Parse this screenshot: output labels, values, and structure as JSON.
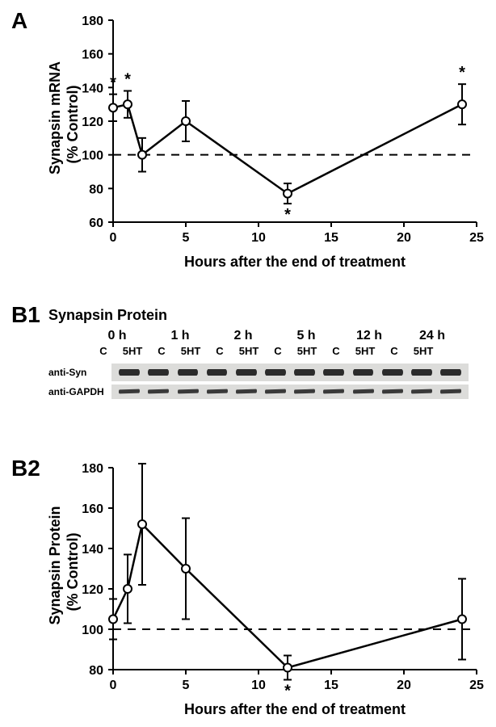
{
  "panelA": {
    "label": "A",
    "type": "line",
    "ylabel_line1": "Synapsin mRNA",
    "ylabel_line2": "(% Control)",
    "xlabel": "Hours after the end of treatment",
    "xlim": [
      0,
      25
    ],
    "ylim": [
      60,
      180
    ],
    "xtick_step": 5,
    "ytick_step": 20,
    "xticks": [
      0,
      5,
      10,
      15,
      20,
      25
    ],
    "yticks": [
      60,
      80,
      100,
      120,
      140,
      160,
      180
    ],
    "baseline_y": 100,
    "baseline_dash": "10,8",
    "line_color": "#000000",
    "line_width": 2.5,
    "marker_size": 5,
    "marker_fill": "#ffffff",
    "marker_stroke": "#000000",
    "data": [
      {
        "x": 0,
        "y": 128,
        "err": 8,
        "sig": true,
        "sig_pos": "above"
      },
      {
        "x": 1,
        "y": 130,
        "err": 8,
        "sig": true,
        "sig_pos": "above"
      },
      {
        "x": 2,
        "y": 100,
        "err": 10,
        "sig": false
      },
      {
        "x": 5,
        "y": 120,
        "err": 12,
        "sig": false
      },
      {
        "x": 12,
        "y": 77,
        "err": 6,
        "sig": true,
        "sig_pos": "below"
      },
      {
        "x": 24,
        "y": 130,
        "err": 12,
        "sig": true,
        "sig_pos": "above"
      }
    ]
  },
  "panelB1": {
    "label": "B1",
    "title": "Synapsin Protein",
    "time_labels": [
      "0 h",
      "1 h",
      "2 h",
      "5 h",
      "12 h",
      "24 h"
    ],
    "condition_labels": [
      "C",
      "5HT"
    ],
    "antibodies": [
      "anti-Syn",
      "anti-GAPDH"
    ],
    "blot_bg": "#dcdcda",
    "band_color": "#2b2b2b"
  },
  "panelB2": {
    "label": "B2",
    "type": "line",
    "ylabel_line1": "Synapsin Protein",
    "ylabel_line2": "(% Control)",
    "xlabel": "Hours after the end of treatment",
    "xlim": [
      0,
      25
    ],
    "ylim": [
      80,
      180
    ],
    "xtick_step": 5,
    "ytick_step": 20,
    "xticks": [
      0,
      5,
      10,
      15,
      20,
      25
    ],
    "yticks": [
      80,
      100,
      120,
      140,
      160,
      180
    ],
    "baseline_y": 100,
    "baseline_dash": "10,8",
    "line_color": "#000000",
    "line_width": 2.5,
    "marker_size": 5,
    "marker_fill": "#ffffff",
    "marker_stroke": "#000000",
    "data": [
      {
        "x": 0,
        "y": 105,
        "err": 10,
        "sig": false
      },
      {
        "x": 1,
        "y": 120,
        "err": 17,
        "sig": false
      },
      {
        "x": 2,
        "y": 152,
        "err": 30,
        "sig": true,
        "sig_pos": "above"
      },
      {
        "x": 5,
        "y": 130,
        "err": 25,
        "sig": false
      },
      {
        "x": 12,
        "y": 81,
        "err": 6,
        "sig": true,
        "sig_pos": "below"
      },
      {
        "x": 24,
        "y": 105,
        "err": 20,
        "sig": false
      }
    ]
  },
  "label_fontsize_pt": 18,
  "tick_fontsize_pt": 16,
  "panel_label_fontsize_pt": 28,
  "sig_marker": "*",
  "tick_len": 6,
  "axis_color": "#000000",
  "axis_width": 2,
  "background_color": "#ffffff"
}
